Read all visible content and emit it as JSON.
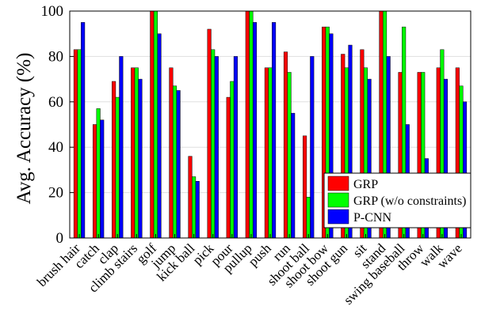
{
  "chart_data": {
    "type": "bar",
    "title": "",
    "xlabel": "",
    "ylabel": "Avg. Accuracy (%)",
    "ylim": [
      0,
      100
    ],
    "yticks": [
      0,
      20,
      40,
      60,
      80,
      100
    ],
    "grid": "horizontal",
    "legend_position": "right",
    "categories": [
      "brush hair",
      "catch",
      "clap",
      "climb stairs",
      "golf",
      "jump",
      "kick ball",
      "pick",
      "pour",
      "pullup",
      "push",
      "run",
      "shoot ball",
      "shoot bow",
      "shoot gun",
      "sit",
      "stand",
      "swing baseball",
      "throw",
      "walk",
      "wave"
    ],
    "series": [
      {
        "name": "GRP",
        "color": "#ff0000",
        "values": [
          83,
          50,
          69,
          75,
          100,
          75,
          36,
          92,
          62,
          100,
          75,
          82,
          45,
          93,
          81,
          83,
          100,
          73,
          73,
          75,
          75
        ]
      },
      {
        "name": "GRP (w/o constraints)",
        "color": "#00ff00",
        "values": [
          83,
          57,
          62,
          75,
          100,
          67,
          27,
          83,
          69,
          100,
          75,
          73,
          18,
          93,
          75,
          75,
          100,
          93,
          73,
          83,
          67
        ]
      },
      {
        "name": "P-CNN",
        "color": "#0000ff",
        "values": [
          95,
          52,
          80,
          70,
          90,
          65,
          25,
          80,
          80,
          95,
          95,
          55,
          80,
          90,
          85,
          70,
          80,
          50,
          35,
          70,
          60
        ]
      }
    ]
  }
}
